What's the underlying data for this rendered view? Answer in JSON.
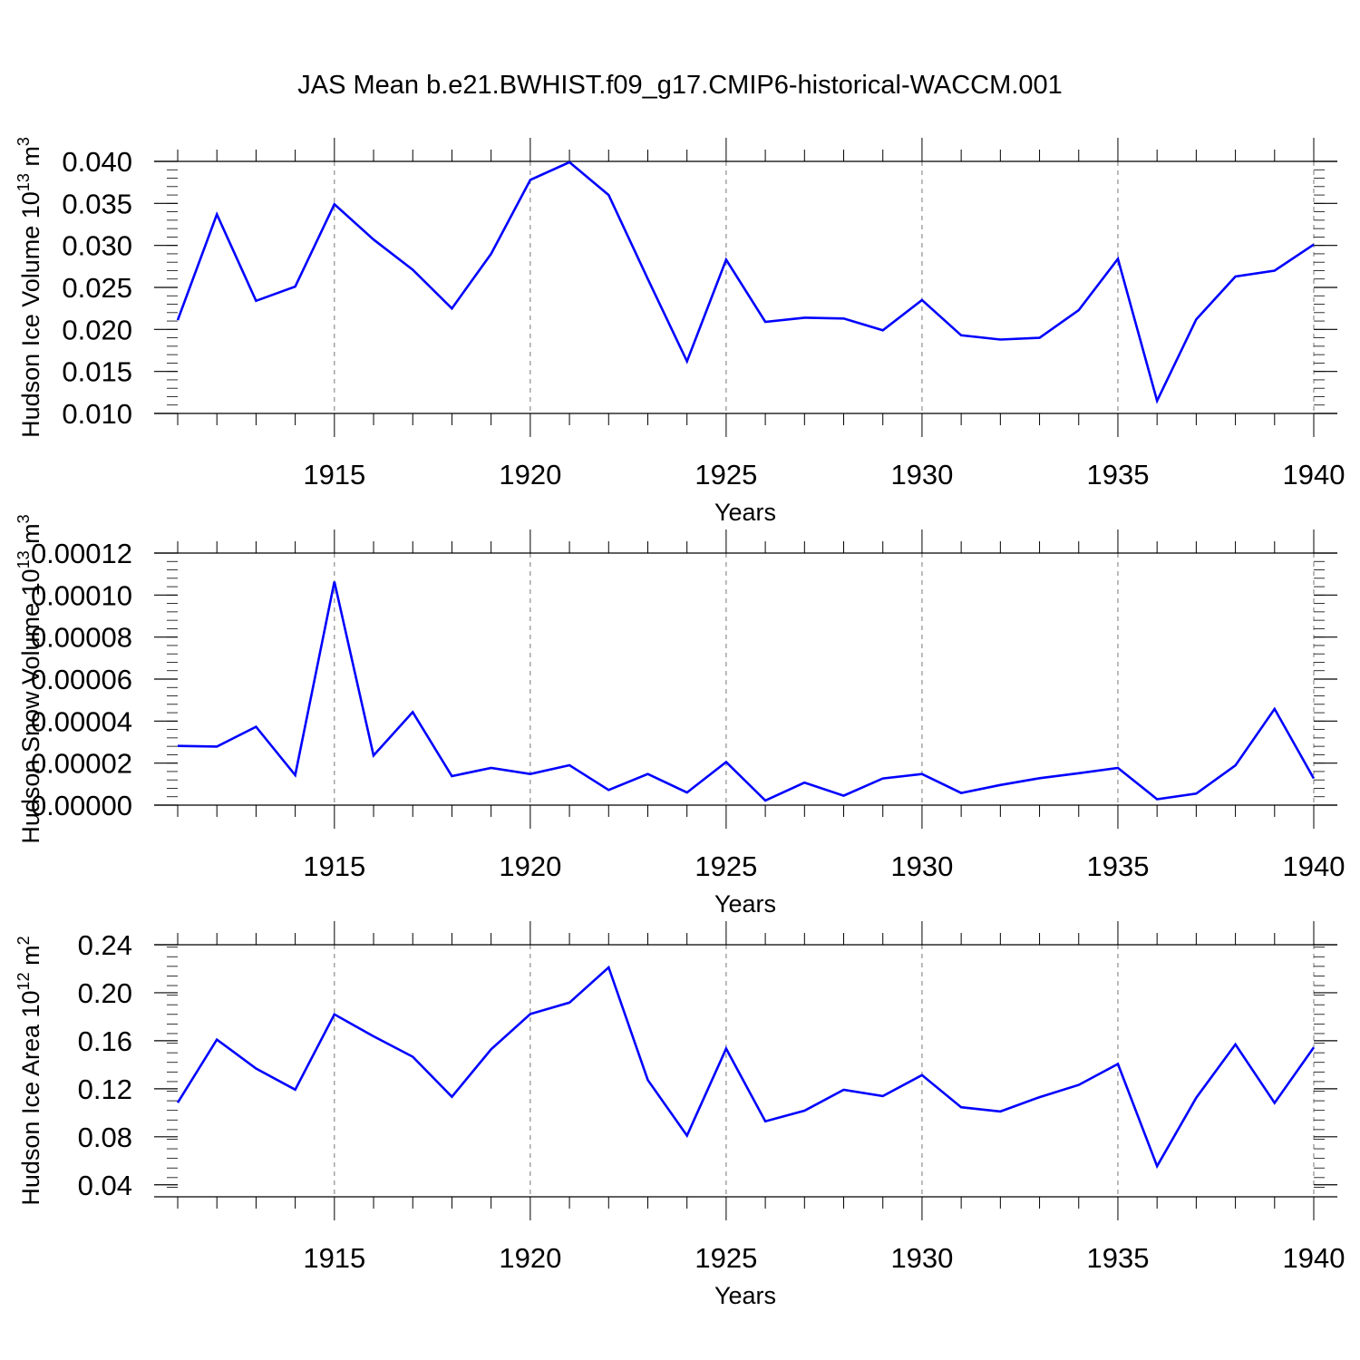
{
  "title": "JAS Mean b.e21.BWHIST.f09_g17.CMIP6-historical-WACCM.001",
  "colors": {
    "series": "#0000ff",
    "axis": "#000000",
    "grid": "#777777"
  },
  "chart_data": [
    {
      "type": "line",
      "ylabel": {
        "text": "Hudson Ice Volume 10",
        "exp": "13",
        "unit": " m",
        "unit_exp": "3"
      },
      "xlabel": "Years",
      "xlim": [
        1911,
        1940
      ],
      "ylim": [
        0.01,
        0.04
      ],
      "yticks": [
        0.01,
        0.015,
        0.02,
        0.025,
        0.03,
        0.035,
        0.04
      ],
      "ytick_labels": [
        "0.010",
        "0.015",
        "0.020",
        "0.025",
        "0.030",
        "0.035",
        "0.040"
      ],
      "xticks": [
        1915,
        1920,
        1925,
        1930,
        1935,
        1940
      ],
      "xtick_labels": [
        "1915",
        "1920",
        "1925",
        "1930",
        "1935",
        "1940"
      ],
      "grid": "dashed vertical at major x ticks",
      "x": [
        1911,
        1912,
        1913,
        1914,
        1915,
        1916,
        1917,
        1918,
        1919,
        1920,
        1921,
        1922,
        1923,
        1924,
        1925,
        1926,
        1927,
        1928,
        1929,
        1930,
        1931,
        1932,
        1933,
        1934,
        1935,
        1936,
        1937,
        1938,
        1939,
        1940
      ],
      "values": [
        0.0211,
        0.0337,
        0.0234,
        0.0251,
        0.0349,
        0.0307,
        0.0271,
        0.0225,
        0.029,
        0.0378,
        0.0399,
        0.036,
        0.026,
        0.0162,
        0.0283,
        0.0209,
        0.0214,
        0.0213,
        0.0199,
        0.0235,
        0.0193,
        0.0188,
        0.019,
        0.0223,
        0.0284,
        0.0115,
        0.0212,
        0.0263,
        0.027,
        0.0301
      ]
    },
    {
      "type": "line",
      "ylabel": {
        "text": "Hudson Snow Volume 10",
        "exp": "13",
        "unit": " m",
        "unit_exp": "3"
      },
      "xlabel": "Years",
      "xlim": [
        1911,
        1940
      ],
      "ylim": [
        0,
        0.00012
      ],
      "yticks": [
        0,
        2e-05,
        4e-05,
        6e-05,
        8e-05,
        0.0001,
        0.00012
      ],
      "ytick_labels": [
        "0.00000",
        "0.00002",
        "0.00004",
        "0.00006",
        "0.00008",
        "0.00010",
        "0.00012"
      ],
      "xticks": [
        1915,
        1920,
        1925,
        1930,
        1935,
        1940
      ],
      "xtick_labels": [
        "1915",
        "1920",
        "1925",
        "1930",
        "1935",
        "1940"
      ],
      "grid": "dashed vertical at major x ticks",
      "x": [
        1911,
        1912,
        1913,
        1914,
        1915,
        1916,
        1917,
        1918,
        1919,
        1920,
        1921,
        1922,
        1923,
        1924,
        1925,
        1926,
        1927,
        1928,
        1929,
        1930,
        1931,
        1932,
        1933,
        1934,
        1935,
        1936,
        1937,
        1938,
        1939,
        1940
      ],
      "values": [
        2.82e-05,
        2.79e-05,
        3.73e-05,
        1.43e-05,
        0.0001064,
        2.36e-05,
        4.43e-05,
        1.38e-05,
        1.77e-05,
        1.48e-05,
        1.9e-05,
        7.2e-06,
        1.48e-05,
        6e-06,
        2.05e-05,
        2.2e-06,
        1.07e-05,
        4.5e-06,
        1.27e-05,
        1.48e-05,
        5.8e-06,
        9.6e-06,
        1.28e-05,
        1.52e-05,
        1.77e-05,
        2.8e-06,
        5.5e-06,
        1.89e-05,
        4.58e-05,
        1.27e-05
      ]
    },
    {
      "type": "line",
      "ylabel": {
        "text": "Hudson Ice Area 10",
        "exp": "12",
        "unit": " m",
        "unit_exp": "2"
      },
      "xlabel": "Years",
      "xlim": [
        1911,
        1940
      ],
      "ylim": [
        0.03,
        0.24
      ],
      "yticks": [
        0.04,
        0.08,
        0.12,
        0.16,
        0.2,
        0.24
      ],
      "ytick_labels": [
        "0.04",
        "0.08",
        "0.12",
        "0.16",
        "0.20",
        "0.24"
      ],
      "xticks": [
        1915,
        1920,
        1925,
        1930,
        1935,
        1940
      ],
      "xtick_labels": [
        "1915",
        "1920",
        "1925",
        "1930",
        "1935",
        "1940"
      ],
      "grid": "dashed vertical at major x ticks",
      "x": [
        1911,
        1912,
        1913,
        1914,
        1915,
        1916,
        1917,
        1918,
        1919,
        1920,
        1921,
        1922,
        1923,
        1924,
        1925,
        1926,
        1927,
        1928,
        1929,
        1930,
        1931,
        1932,
        1933,
        1934,
        1935,
        1936,
        1937,
        1938,
        1939,
        1940
      ],
      "values": [
        0.1084,
        0.161,
        0.1369,
        0.1193,
        0.182,
        0.1637,
        0.1467,
        0.1133,
        0.1529,
        0.1823,
        0.1918,
        0.2211,
        0.1273,
        0.081,
        0.1534,
        0.0929,
        0.1018,
        0.1191,
        0.1139,
        0.1314,
        0.1046,
        0.1011,
        0.113,
        0.1232,
        0.1407,
        0.0555,
        0.1126,
        0.157,
        0.1082,
        0.1544
      ]
    }
  ]
}
